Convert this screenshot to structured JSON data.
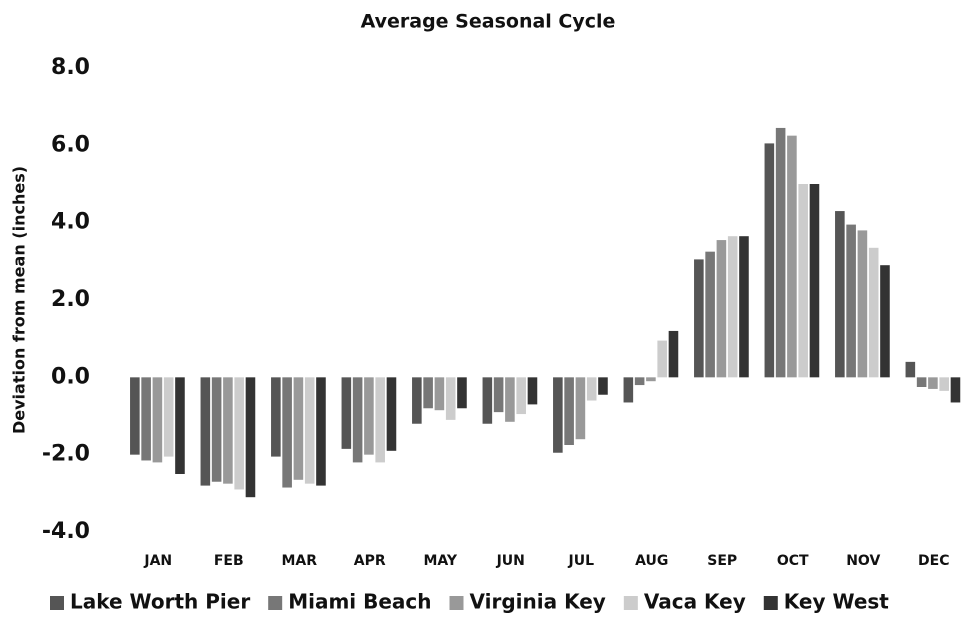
{
  "chart_data": {
    "type": "bar",
    "title": "Average Seasonal Cycle",
    "y_label": "Deviation from mean (inches)",
    "categories": [
      "JAN",
      "FEB",
      "MAR",
      "APR",
      "MAY",
      "JUN",
      "JUL",
      "AUG",
      "SEP",
      "OCT",
      "NOV",
      "DEC"
    ],
    "series": [
      {
        "name": "Lake Worth Pier",
        "color": "#555555",
        "values": [
          -2.0,
          -2.8,
          -2.05,
          -1.85,
          -1.2,
          -1.2,
          -1.95,
          -0.65,
          3.05,
          6.05,
          4.3,
          0.4
        ]
      },
      {
        "name": "Miami Beach",
        "color": "#777777",
        "values": [
          -2.15,
          -2.7,
          -2.85,
          -2.2,
          -0.8,
          -0.9,
          -1.75,
          -0.2,
          3.25,
          6.45,
          3.95,
          -0.25
        ]
      },
      {
        "name": "Virginia Key",
        "color": "#999999",
        "values": [
          -2.2,
          -2.75,
          -2.65,
          -2.0,
          -0.85,
          -1.15,
          -1.6,
          -0.1,
          3.55,
          6.25,
          3.8,
          -0.3
        ]
      },
      {
        "name": "Vaca Key",
        "color": "#cccccc",
        "values": [
          -2.05,
          -2.9,
          -2.75,
          -2.2,
          -1.1,
          -0.95,
          -0.6,
          0.95,
          3.65,
          5.0,
          3.35,
          -0.35
        ]
      },
      {
        "name": "Key West",
        "color": "#333333",
        "values": [
          -2.5,
          -3.1,
          -2.8,
          -1.9,
          -0.8,
          -0.7,
          -0.45,
          1.2,
          3.65,
          5.0,
          2.9,
          -0.65
        ]
      }
    ],
    "ylim": [
      -4,
      8
    ],
    "yticks": [
      {
        "value": -4,
        "label": "-4.0"
      },
      {
        "value": -2,
        "label": "-2.0"
      },
      {
        "value": 0,
        "label": "0.0"
      },
      {
        "value": 2,
        "label": "2.0"
      },
      {
        "value": 4,
        "label": "4.0"
      },
      {
        "value": 6,
        "label": "6.0"
      },
      {
        "value": 8,
        "label": "8.0"
      }
    ],
    "grid": false,
    "legend": "bottom"
  }
}
